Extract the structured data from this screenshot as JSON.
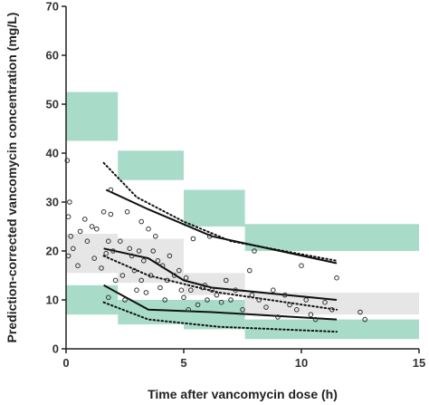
{
  "chart_data": {
    "type": "scatter",
    "title": "",
    "xlabel": "Time after vancomycin dose (h)",
    "ylabel": "Prediction-corrected vancomycin concentration (mg/L)",
    "xlim": [
      0,
      15
    ],
    "ylim": [
      0,
      70
    ],
    "xticks": [
      0,
      5,
      10,
      15
    ],
    "yticks": [
      0,
      10,
      20,
      30,
      40,
      50,
      60,
      70
    ],
    "grid": false,
    "legend": "none",
    "colors": {
      "outer_ci_band": "#a8dcc8",
      "median_ci_band": "#e6e6e6",
      "observed_lines": "#111111",
      "predicted_lines": "#111111",
      "points": "#333333"
    },
    "bins": [
      {
        "x0": 0,
        "x1": 2.2,
        "upper_ci": [
          42.5,
          52.5
        ],
        "median_ci": [
          15.5,
          23.5
        ],
        "lower_ci": [
          7,
          13
        ]
      },
      {
        "x0": 2.2,
        "x1": 5,
        "upper_ci": [
          34.5,
          40.5
        ],
        "median_ci": [
          13.5,
          22.5
        ],
        "lower_ci": [
          5,
          10
        ]
      },
      {
        "x0": 5,
        "x1": 7.6,
        "upper_ci": [
          25,
          32.5
        ],
        "median_ci": [
          11,
          15.5
        ],
        "lower_ci": [
          4,
          10
        ]
      },
      {
        "x0": 7.6,
        "x1": 15,
        "upper_ci": [
          20,
          25.5
        ],
        "median_ci": [
          7,
          11.5
        ],
        "lower_ci": [
          2,
          6
        ]
      }
    ],
    "series": [
      {
        "role": "observed_upper",
        "style": "solid",
        "x": [
          1.7,
          3.5,
          6.2,
          11.5
        ],
        "y": [
          32.5,
          28.5,
          23,
          17.5
        ]
      },
      {
        "role": "observed_median",
        "style": "solid",
        "x": [
          1.6,
          3.5,
          5,
          6.2,
          11.5
        ],
        "y": [
          20.5,
          18.5,
          14,
          12.5,
          10
        ]
      },
      {
        "role": "observed_lower",
        "style": "solid",
        "x": [
          1.6,
          3.5,
          6.2,
          11.5
        ],
        "y": [
          13,
          8,
          7.5,
          6
        ]
      },
      {
        "role": "predicted_upper",
        "style": "dotted",
        "x": [
          1.6,
          3,
          5,
          7,
          11.5
        ],
        "y": [
          38,
          31,
          26,
          22,
          18
        ]
      },
      {
        "role": "predicted_median",
        "style": "dotted",
        "x": [
          1.6,
          3.5,
          6.5,
          11.5
        ],
        "y": [
          19,
          15,
          11.5,
          8
        ]
      },
      {
        "role": "predicted_lower",
        "style": "dotted",
        "x": [
          1.6,
          3.5,
          6.5,
          11.5
        ],
        "y": [
          9.5,
          6,
          4.5,
          3.5
        ]
      },
      {
        "role": "observations",
        "style": "points",
        "x": [
          0.05,
          0.1,
          0.1,
          0.15,
          0.2,
          0.3,
          0.5,
          0.6,
          0.8,
          0.9,
          1.1,
          1.2,
          1.3,
          1.5,
          1.6,
          1.7,
          1.8,
          1.8,
          1.9,
          1.9,
          2.0,
          2.1,
          2.3,
          2.4,
          2.5,
          2.6,
          2.7,
          2.8,
          2.9,
          3.0,
          3.1,
          3.2,
          3.2,
          3.3,
          3.4,
          3.5,
          3.6,
          3.7,
          3.8,
          3.9,
          4.0,
          4.1,
          4.2,
          4.3,
          4.4,
          4.6,
          4.8,
          4.9,
          5.0,
          5.1,
          5.2,
          5.3,
          5.4,
          5.6,
          5.8,
          5.9,
          6.0,
          6.1,
          6.2,
          6.4,
          6.6,
          6.8,
          7.0,
          7.2,
          7.5,
          7.8,
          7.9,
          8.0,
          8.2,
          8.5,
          8.8,
          9.0,
          9.3,
          9.5,
          9.8,
          10.0,
          10.2,
          10.4,
          10.6,
          11.0,
          11.3,
          11.5,
          12.5,
          12.7
        ],
        "y": [
          38.5,
          27,
          19,
          30,
          23,
          20.5,
          17,
          24,
          26.5,
          22,
          25,
          18.5,
          24.5,
          16.5,
          28,
          19.5,
          22,
          10.5,
          27.5,
          32.5,
          20,
          14,
          22,
          15,
          10,
          28,
          20.5,
          19,
          16,
          12,
          20,
          26,
          14,
          18,
          11.5,
          24.5,
          15,
          20,
          23,
          18,
          12.5,
          17,
          10,
          14,
          19,
          15,
          16,
          12,
          10.5,
          14.5,
          8,
          12,
          22.5,
          9,
          12.5,
          13,
          10,
          23,
          12,
          11,
          9.5,
          14,
          10,
          12,
          8,
          16,
          11,
          20,
          10,
          8.5,
          12,
          6.5,
          11,
          9,
          8,
          17,
          10,
          7,
          6,
          9.5,
          8,
          14.5,
          7.5,
          6
        ]
      }
    ]
  }
}
